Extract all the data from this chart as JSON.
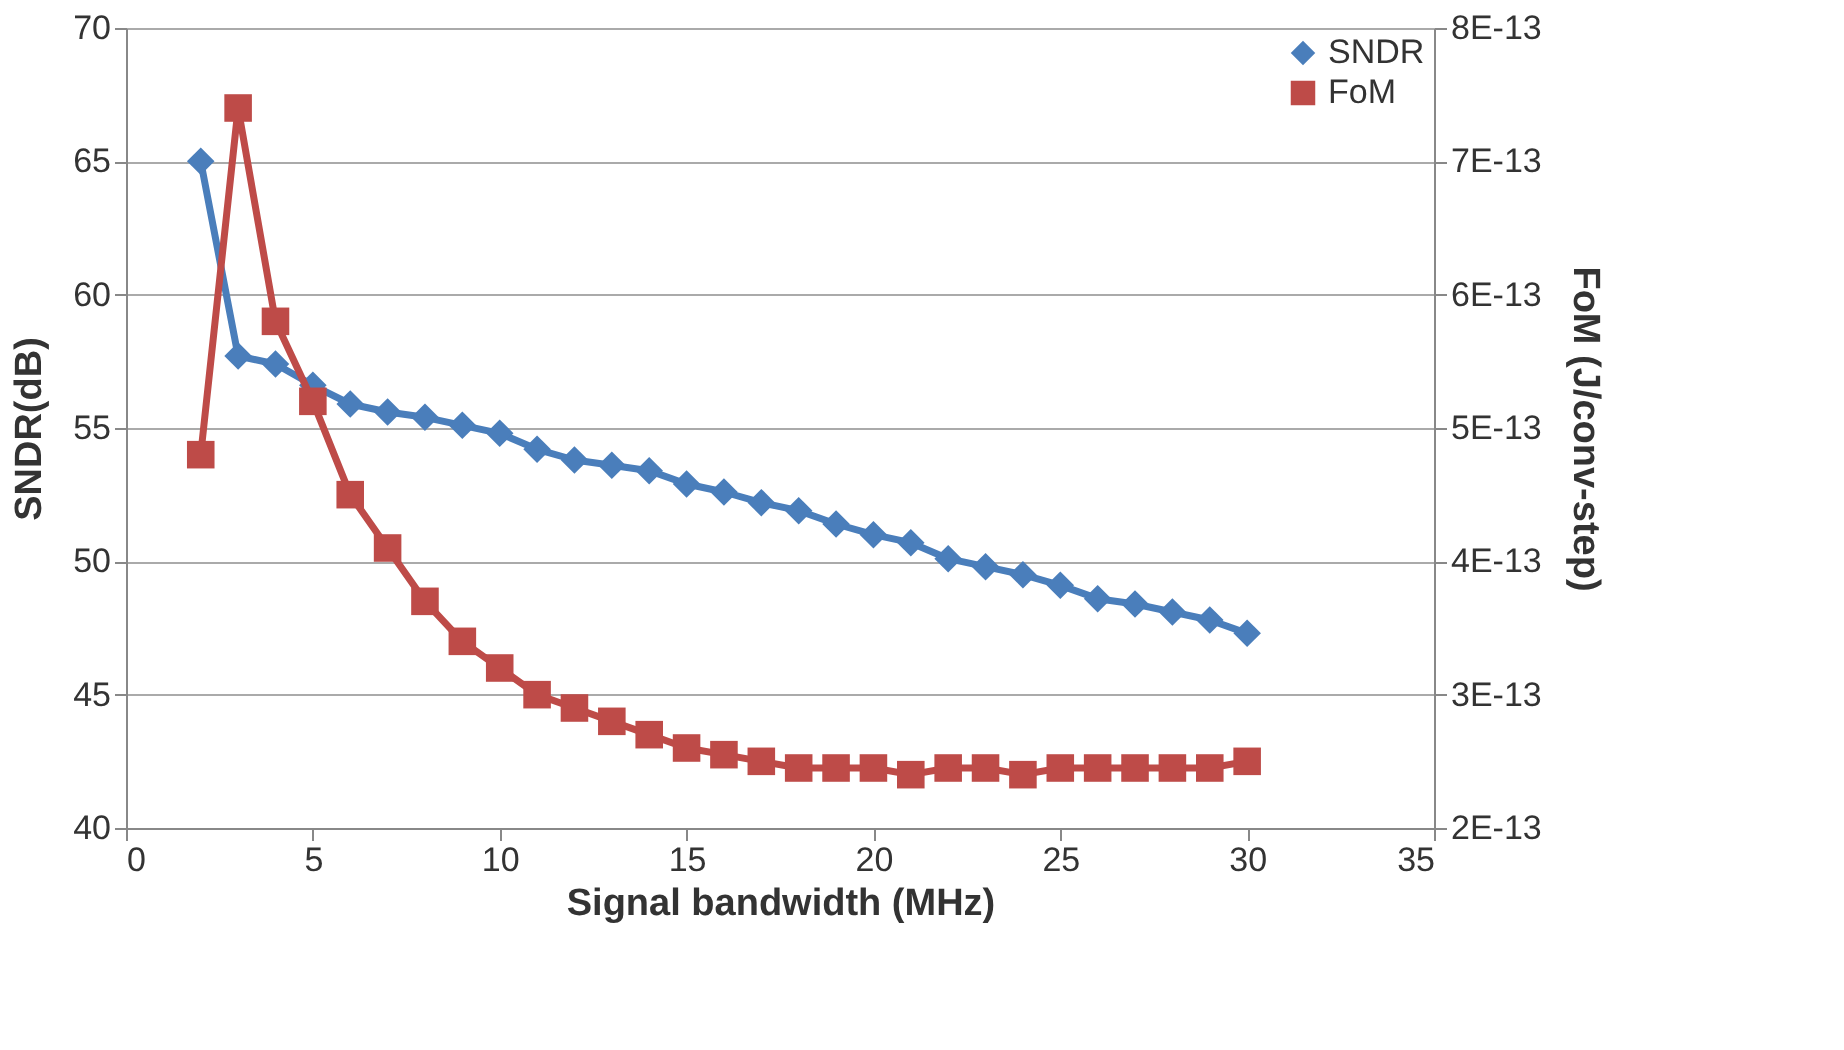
{
  "chart_data": {
    "type": "line",
    "xlabel": "Signal bandwidth (MHz)",
    "ylabel": "SNDR(dB)",
    "y2label": "FoM (J/conv-step)",
    "x": [
      2,
      3,
      4,
      5,
      6,
      7,
      8,
      9,
      10,
      11,
      12,
      13,
      14,
      15,
      16,
      17,
      18,
      19,
      20,
      21,
      22,
      23,
      24,
      25,
      26,
      27,
      28,
      29,
      30
    ],
    "series": [
      {
        "name": "SNDR",
        "color": "#4a7ebb",
        "marker": "diamond",
        "values": [
          65.0,
          57.7,
          57.4,
          56.6,
          55.9,
          55.6,
          55.4,
          55.1,
          54.8,
          54.2,
          53.8,
          53.6,
          53.4,
          52.9,
          52.6,
          52.2,
          51.9,
          51.4,
          51.0,
          50.7,
          50.1,
          49.8,
          49.5,
          49.1,
          48.6,
          48.4,
          48.1,
          47.8,
          47.3
        ]
      },
      {
        "name": "FoM",
        "color": "#be4b48",
        "marker": "square",
        "axis": "y2",
        "values": [
          4.8e-13,
          7.4e-13,
          5.8e-13,
          5.2e-13,
          4.5e-13,
          4.1e-13,
          3.7e-13,
          3.4e-13,
          3.2e-13,
          3e-13,
          2.9e-13,
          2.8e-13,
          2.7e-13,
          2.6e-13,
          2.55e-13,
          2.5e-13,
          2.45e-13,
          2.45e-13,
          2.45e-13,
          2.4e-13,
          2.45e-13,
          2.45e-13,
          2.4e-13,
          2.45e-13,
          2.45e-13,
          2.45e-13,
          2.45e-13,
          2.45e-13,
          2.5e-13
        ]
      }
    ],
    "xlim": [
      0,
      35
    ],
    "xticks": [
      0,
      5,
      10,
      15,
      20,
      25,
      30,
      35
    ],
    "ylim": [
      40,
      70
    ],
    "yticks": [
      40,
      45,
      50,
      55,
      60,
      65,
      70
    ],
    "y2lim": [
      2e-13,
      8e-13
    ],
    "y2ticks": [
      {
        "value": 2e-13,
        "label": "2E-13"
      },
      {
        "value": 3e-13,
        "label": "3E-13"
      },
      {
        "value": 4e-13,
        "label": "4E-13"
      },
      {
        "value": 5e-13,
        "label": "5E-13"
      },
      {
        "value": 6e-13,
        "label": "6E-13"
      },
      {
        "value": 7e-13,
        "label": "7E-13"
      },
      {
        "value": 8e-13,
        "label": "8E-13"
      }
    ],
    "grid": "y",
    "legend": "top right",
    "line_style": "solid"
  }
}
